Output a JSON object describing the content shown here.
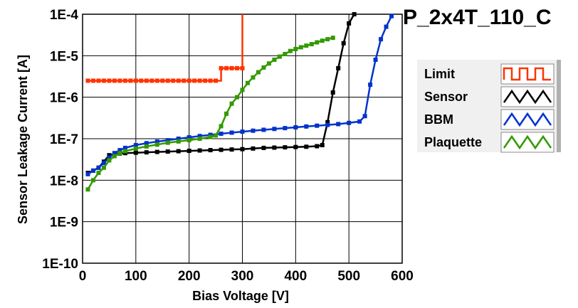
{
  "title": "P_2x4T_110_C",
  "colors": {
    "background": "#ffffff",
    "plot_background": "#ffffff",
    "grid": "#000000"
  },
  "chart_data": {
    "type": "line",
    "title": "P_2x4T_110_C",
    "xlabel": "Bias Voltage [V]",
    "ylabel": "Sensor Leakage Current [A]",
    "xlim": [
      0,
      600
    ],
    "ylim": [
      1e-10,
      0.0001
    ],
    "yscale": "log",
    "grid": true,
    "legend_position": "right",
    "x_ticks": [
      "0",
      "100",
      "200",
      "300",
      "400",
      "500",
      "600"
    ],
    "y_ticks": [
      "1E-10",
      "1E-9",
      "1E-8",
      "1E-7",
      "1E-6",
      "1E-5",
      "1E-4"
    ],
    "series": [
      {
        "name": "Limit",
        "color": "#ff3300",
        "step": true,
        "x": [
          10,
          20,
          30,
          40,
          50,
          60,
          70,
          80,
          90,
          100,
          110,
          120,
          130,
          140,
          150,
          160,
          170,
          180,
          190,
          200,
          210,
          220,
          230,
          240,
          250,
          260,
          270,
          280,
          290,
          300
        ],
        "y": [
          2.5e-06,
          2.5e-06,
          2.5e-06,
          2.5e-06,
          2.5e-06,
          2.5e-06,
          2.5e-06,
          2.5e-06,
          2.5e-06,
          2.5e-06,
          2.5e-06,
          2.5e-06,
          2.5e-06,
          2.5e-06,
          2.5e-06,
          2.5e-06,
          2.5e-06,
          2.5e-06,
          2.5e-06,
          2.5e-06,
          2.5e-06,
          2.5e-06,
          2.5e-06,
          2.5e-06,
          2.5e-06,
          5e-06,
          5e-06,
          5e-06,
          5e-06,
          5e-06
        ]
      },
      {
        "name": "Sensor",
        "color": "#000000",
        "x": [
          10,
          20,
          30,
          40,
          50,
          60,
          70,
          80,
          100,
          120,
          140,
          160,
          180,
          200,
          220,
          240,
          260,
          280,
          300,
          320,
          340,
          360,
          380,
          400,
          420,
          440,
          450,
          460,
          470,
          480,
          490,
          500,
          510
        ],
        "y": [
          1.5e-08,
          1.7e-08,
          2e-08,
          2.8e-08,
          4e-08,
          4.3e-08,
          4.4e-08,
          4.5e-08,
          4.6e-08,
          4.7e-08,
          4.8e-08,
          4.9e-08,
          5e-08,
          5.1e-08,
          5.2e-08,
          5.3e-08,
          5.4e-08,
          5.5e-08,
          5.6e-08,
          5.8e-08,
          6e-08,
          6.1e-08,
          6.2e-08,
          6.3e-08,
          6.4e-08,
          6.6e-08,
          7e-08,
          2.5e-07,
          1.3e-06,
          5e-06,
          2e-05,
          6e-05,
          0.0001
        ]
      },
      {
        "name": "BBM",
        "color": "#0033cc",
        "x": [
          10,
          20,
          30,
          40,
          50,
          60,
          70,
          80,
          100,
          120,
          140,
          160,
          180,
          200,
          220,
          240,
          260,
          280,
          300,
          320,
          340,
          360,
          380,
          400,
          420,
          440,
          460,
          480,
          500,
          520,
          530,
          540,
          550,
          560,
          570,
          580
        ],
        "y": [
          1.4e-08,
          1.7e-08,
          2e-08,
          2.6e-08,
          3.5e-08,
          4.5e-08,
          5.3e-08,
          6e-08,
          7e-08,
          7.8e-08,
          8.5e-08,
          9.2e-08,
          1e-07,
          1.08e-07,
          1.16e-07,
          1.24e-07,
          1.32e-07,
          1.4e-07,
          1.48e-07,
          1.56e-07,
          1.64e-07,
          1.72e-07,
          1.8e-07,
          1.88e-07,
          1.97e-07,
          2.06e-07,
          2.15e-07,
          2.25e-07,
          2.4e-07,
          2.6e-07,
          3.5e-07,
          2e-06,
          8e-06,
          2.5e-05,
          5e-05,
          9e-05
        ]
      },
      {
        "name": "Plaquette",
        "color": "#339900",
        "x": [
          10,
          20,
          30,
          40,
          50,
          60,
          70,
          80,
          100,
          120,
          140,
          160,
          180,
          200,
          220,
          240,
          250,
          260,
          270,
          280,
          290,
          300,
          310,
          320,
          330,
          340,
          350,
          360,
          370,
          380,
          390,
          400,
          410,
          420,
          430,
          440,
          450,
          460,
          470
        ],
        "y": [
          6e-09,
          1e-08,
          1.5e-08,
          2e-08,
          3e-08,
          3.8e-08,
          4.5e-08,
          5e-08,
          5.8e-08,
          6.5e-08,
          7.2e-08,
          8e-08,
          8.6e-08,
          9.2e-08,
          1e-07,
          1.1e-07,
          1.2e-07,
          2e-07,
          4e-07,
          7e-07,
          1e-06,
          1.5e-06,
          2.2e-06,
          3e-06,
          4e-06,
          5.2e-06,
          6.5e-06,
          8e-06,
          9.5e-06,
          1.1e-05,
          1.3e-05,
          1.45e-05,
          1.6e-05,
          1.75e-05,
          1.9e-05,
          2.1e-05,
          2.3e-05,
          2.5e-05,
          2.7e-05
        ]
      }
    ]
  }
}
